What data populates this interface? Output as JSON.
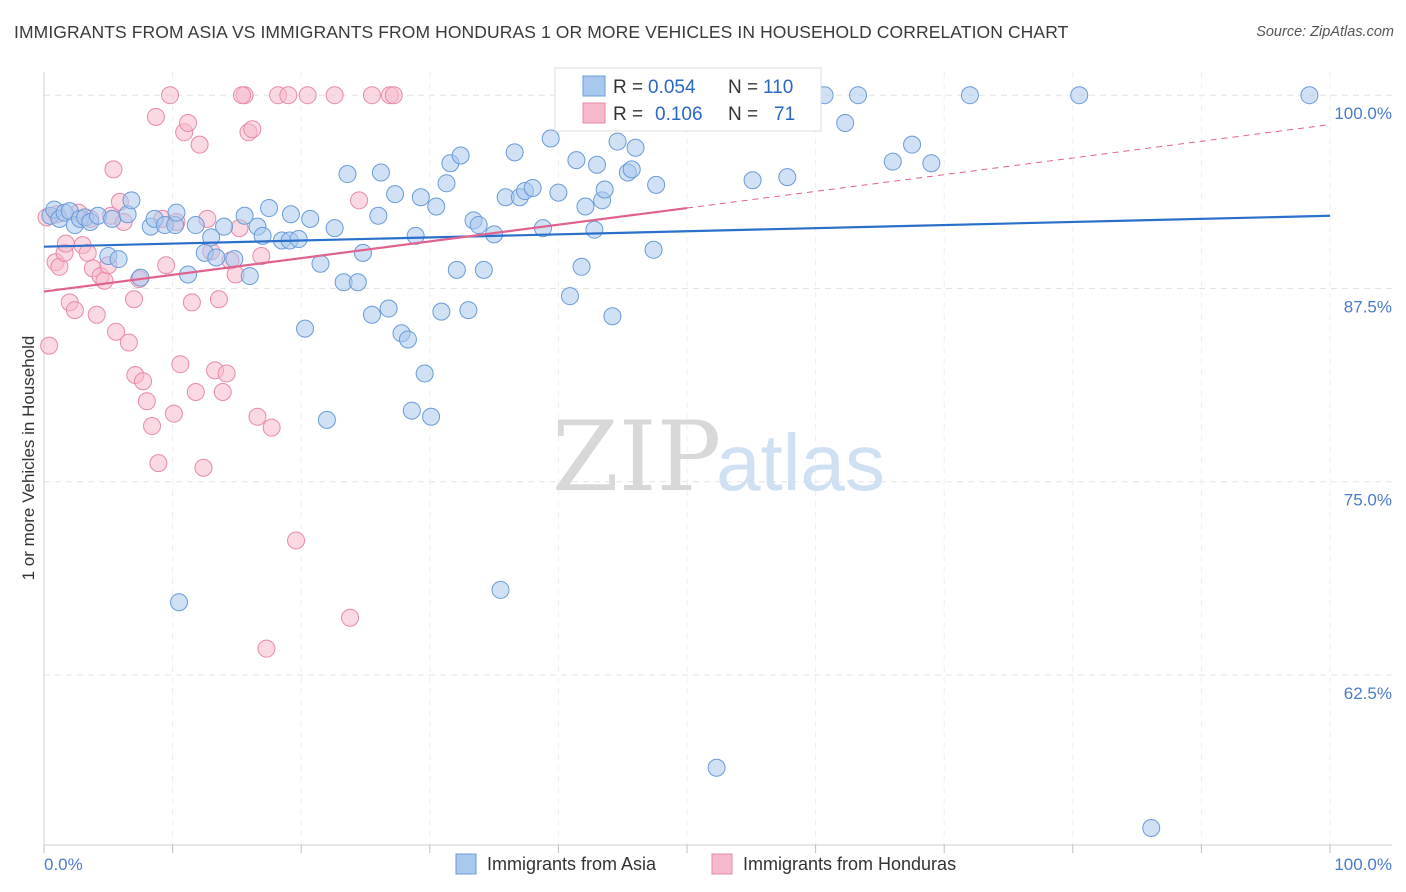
{
  "title": "IMMIGRANTS FROM ASIA VS IMMIGRANTS FROM HONDURAS 1 OR MORE VEHICLES IN HOUSEHOLD CORRELATION CHART",
  "source": "Source: ZipAtlas.com",
  "watermark": {
    "zip": "ZIP",
    "atlas": "atlas"
  },
  "colors": {
    "asia_fill": "#a9c8ee",
    "asia_stroke": "#6a9bd8",
    "asia_line": "#2a6fc9",
    "honduras_fill": "#f6b9cc",
    "honduras_stroke": "#e88aa8",
    "honduras_line": "#e0628e",
    "grid": "#e3e3e3",
    "axis_text": "#4a7cc9"
  },
  "legend": {
    "rows": [
      {
        "r_label": "R =",
        "r_value": "0.054",
        "n_label": "N =",
        "n_value": "110"
      },
      {
        "r_label": "R =",
        "r_value": "0.106",
        "n_label": "N =",
        "n_value": "71"
      }
    ]
  },
  "chart_data": {
    "type": "scatter",
    "title": "IMMIGRANTS FROM ASIA VS IMMIGRANTS FROM HONDURAS 1 OR MORE VEHICLES IN HOUSEHOLD CORRELATION CHART",
    "xlabel": "",
    "ylabel": "1 or more Vehicles in Household",
    "xlim": [
      0,
      100
    ],
    "ylim": [
      51.5,
      101.5
    ],
    "x_tick_labels": [
      "0.0%",
      "100.0%"
    ],
    "y_ticks": [
      62.5,
      75.0,
      87.5,
      100.0
    ],
    "y_tick_labels": [
      "62.5%",
      "75.0%",
      "87.5%",
      "100.0%"
    ],
    "grid": true,
    "legend_position": "top-center",
    "series": [
      {
        "name": "Immigrants from Asia",
        "trend": {
          "x0": 0,
          "y0": 90.2,
          "x1": 100,
          "y1": 92.2
        },
        "points": [
          [
            0.5,
            92.2
          ],
          [
            0.8,
            92.6
          ],
          [
            1.2,
            92.0
          ],
          [
            1.6,
            92.4
          ],
          [
            2.0,
            92.5
          ],
          [
            2.4,
            91.6
          ],
          [
            2.8,
            92.0
          ],
          [
            3.2,
            92.1
          ],
          [
            3.6,
            91.8
          ],
          [
            4.2,
            92.2
          ],
          [
            5.3,
            92.0
          ],
          [
            5.0,
            89.6
          ],
          [
            5.8,
            89.4
          ],
          [
            6.5,
            92.3
          ],
          [
            6.8,
            93.2
          ],
          [
            7.5,
            88.2
          ],
          [
            8.3,
            91.5
          ],
          [
            8.6,
            92.0
          ],
          [
            9.4,
            91.6
          ],
          [
            10.2,
            91.6
          ],
          [
            10.3,
            92.4
          ],
          [
            10.5,
            67.2
          ],
          [
            11.2,
            88.4
          ],
          [
            11.8,
            91.6
          ],
          [
            12.5,
            89.8
          ],
          [
            13.0,
            90.8
          ],
          [
            13.4,
            89.5
          ],
          [
            14.0,
            91.5
          ],
          [
            14.8,
            89.4
          ],
          [
            15.6,
            92.2
          ],
          [
            16.0,
            88.3
          ],
          [
            16.6,
            91.5
          ],
          [
            17.0,
            90.9
          ],
          [
            17.5,
            92.7
          ],
          [
            18.5,
            90.6
          ],
          [
            19.1,
            90.6
          ],
          [
            19.2,
            92.3
          ],
          [
            19.8,
            90.7
          ],
          [
            20.3,
            84.9
          ],
          [
            20.7,
            92.0
          ],
          [
            21.5,
            89.1
          ],
          [
            22.0,
            79.0
          ],
          [
            22.6,
            91.4
          ],
          [
            23.3,
            87.9
          ],
          [
            23.6,
            94.9
          ],
          [
            24.4,
            87.9
          ],
          [
            24.8,
            89.8
          ],
          [
            25.5,
            85.8
          ],
          [
            26.0,
            92.2
          ],
          [
            26.2,
            95.0
          ],
          [
            26.8,
            86.2
          ],
          [
            27.3,
            93.6
          ],
          [
            27.8,
            84.6
          ],
          [
            28.3,
            84.2
          ],
          [
            28.6,
            79.6
          ],
          [
            28.9,
            90.9
          ],
          [
            29.3,
            93.4
          ],
          [
            29.6,
            82.0
          ],
          [
            30.1,
            79.2
          ],
          [
            30.5,
            92.8
          ],
          [
            30.9,
            86.0
          ],
          [
            31.3,
            94.3
          ],
          [
            31.6,
            95.6
          ],
          [
            32.1,
            88.7
          ],
          [
            32.4,
            96.1
          ],
          [
            33.0,
            86.1
          ],
          [
            33.4,
            91.9
          ],
          [
            33.8,
            91.6
          ],
          [
            34.2,
            88.7
          ],
          [
            35.0,
            91.0
          ],
          [
            35.5,
            68.0
          ],
          [
            35.9,
            93.4
          ],
          [
            36.6,
            96.3
          ],
          [
            37.0,
            93.4
          ],
          [
            37.4,
            93.8
          ],
          [
            38.0,
            94.0
          ],
          [
            38.8,
            91.4
          ],
          [
            39.4,
            97.2
          ],
          [
            40.0,
            93.7
          ],
          [
            40.9,
            87.0
          ],
          [
            41.4,
            95.8
          ],
          [
            41.8,
            88.9
          ],
          [
            42.1,
            92.8
          ],
          [
            42.8,
            91.3
          ],
          [
            43.0,
            95.5
          ],
          [
            43.4,
            93.2
          ],
          [
            43.6,
            93.9
          ],
          [
            44.2,
            85.7
          ],
          [
            44.6,
            97.0
          ],
          [
            45.4,
            95.0
          ],
          [
            45.7,
            95.2
          ],
          [
            46.0,
            96.6
          ],
          [
            47.4,
            90.0
          ],
          [
            47.6,
            94.2
          ],
          [
            52.3,
            56.5
          ],
          [
            53.0,
            100.0
          ],
          [
            55.1,
            94.5
          ],
          [
            59.4,
            100.0
          ],
          [
            60.7,
            100.0
          ],
          [
            62.3,
            98.2
          ],
          [
            63.3,
            100.0
          ],
          [
            80.5,
            100.0
          ],
          [
            86.1,
            52.6
          ],
          [
            98.4,
            100.0
          ],
          [
            66.0,
            95.7
          ],
          [
            67.5,
            96.8
          ],
          [
            69.0,
            95.6
          ],
          [
            72.0,
            100.0
          ],
          [
            57.8,
            94.7
          ],
          [
            50.9,
            100.0
          ]
        ]
      },
      {
        "name": "Immigrants from Honduras",
        "trend": {
          "x0": 0,
          "y0": 87.3,
          "x1": 50,
          "y1": 92.7
        },
        "trend_extension": {
          "x0": 50,
          "y0": 92.7,
          "x1": 100,
          "y1": 98.1
        },
        "points": [
          [
            0.2,
            92.1
          ],
          [
            0.4,
            83.8
          ],
          [
            0.9,
            89.2
          ],
          [
            1.2,
            88.9
          ],
          [
            1.6,
            89.8
          ],
          [
            1.7,
            90.4
          ],
          [
            2.0,
            86.6
          ],
          [
            2.4,
            86.1
          ],
          [
            2.7,
            92.4
          ],
          [
            3.0,
            90.3
          ],
          [
            3.4,
            89.8
          ],
          [
            3.6,
            92.0
          ],
          [
            3.8,
            88.8
          ],
          [
            4.1,
            85.8
          ],
          [
            4.4,
            88.3
          ],
          [
            4.7,
            88.0
          ],
          [
            5.0,
            89.0
          ],
          [
            5.2,
            92.2
          ],
          [
            5.4,
            95.2
          ],
          [
            5.6,
            84.7
          ],
          [
            5.9,
            93.1
          ],
          [
            6.2,
            91.8
          ],
          [
            6.6,
            84.0
          ],
          [
            7.0,
            86.8
          ],
          [
            7.1,
            81.9
          ],
          [
            7.4,
            88.1
          ],
          [
            7.7,
            81.5
          ],
          [
            8.0,
            80.2
          ],
          [
            8.4,
            78.6
          ],
          [
            8.7,
            98.6
          ],
          [
            8.9,
            76.2
          ],
          [
            9.2,
            92.0
          ],
          [
            9.5,
            89.0
          ],
          [
            9.8,
            100.0
          ],
          [
            10.1,
            79.4
          ],
          [
            10.3,
            91.8
          ],
          [
            10.6,
            82.6
          ],
          [
            10.9,
            97.6
          ],
          [
            11.2,
            98.2
          ],
          [
            11.5,
            86.6
          ],
          [
            11.8,
            80.8
          ],
          [
            12.1,
            96.8
          ],
          [
            12.4,
            75.9
          ],
          [
            12.7,
            92.0
          ],
          [
            13.0,
            89.9
          ],
          [
            13.3,
            82.2
          ],
          [
            13.6,
            86.8
          ],
          [
            13.9,
            80.8
          ],
          [
            14.2,
            82.0
          ],
          [
            14.5,
            89.3
          ],
          [
            14.9,
            88.4
          ],
          [
            15.2,
            91.4
          ],
          [
            15.6,
            100.0
          ],
          [
            15.9,
            97.6
          ],
          [
            16.2,
            97.8
          ],
          [
            16.6,
            79.2
          ],
          [
            16.9,
            89.6
          ],
          [
            17.3,
            64.2
          ],
          [
            17.7,
            78.5
          ],
          [
            18.2,
            100.0
          ],
          [
            19.0,
            100.0
          ],
          [
            19.6,
            71.2
          ],
          [
            20.5,
            100.0
          ],
          [
            22.6,
            100.0
          ],
          [
            23.8,
            66.2
          ],
          [
            24.5,
            93.2
          ],
          [
            25.5,
            100.0
          ],
          [
            26.9,
            100.0
          ],
          [
            27.2,
            100.0
          ],
          [
            1.0,
            92.3
          ],
          [
            15.4,
            100.0
          ]
        ]
      }
    ]
  },
  "bottom_legend": [
    {
      "label": "Immigrants from Asia"
    },
    {
      "label": "Immigrants from Honduras"
    }
  ]
}
